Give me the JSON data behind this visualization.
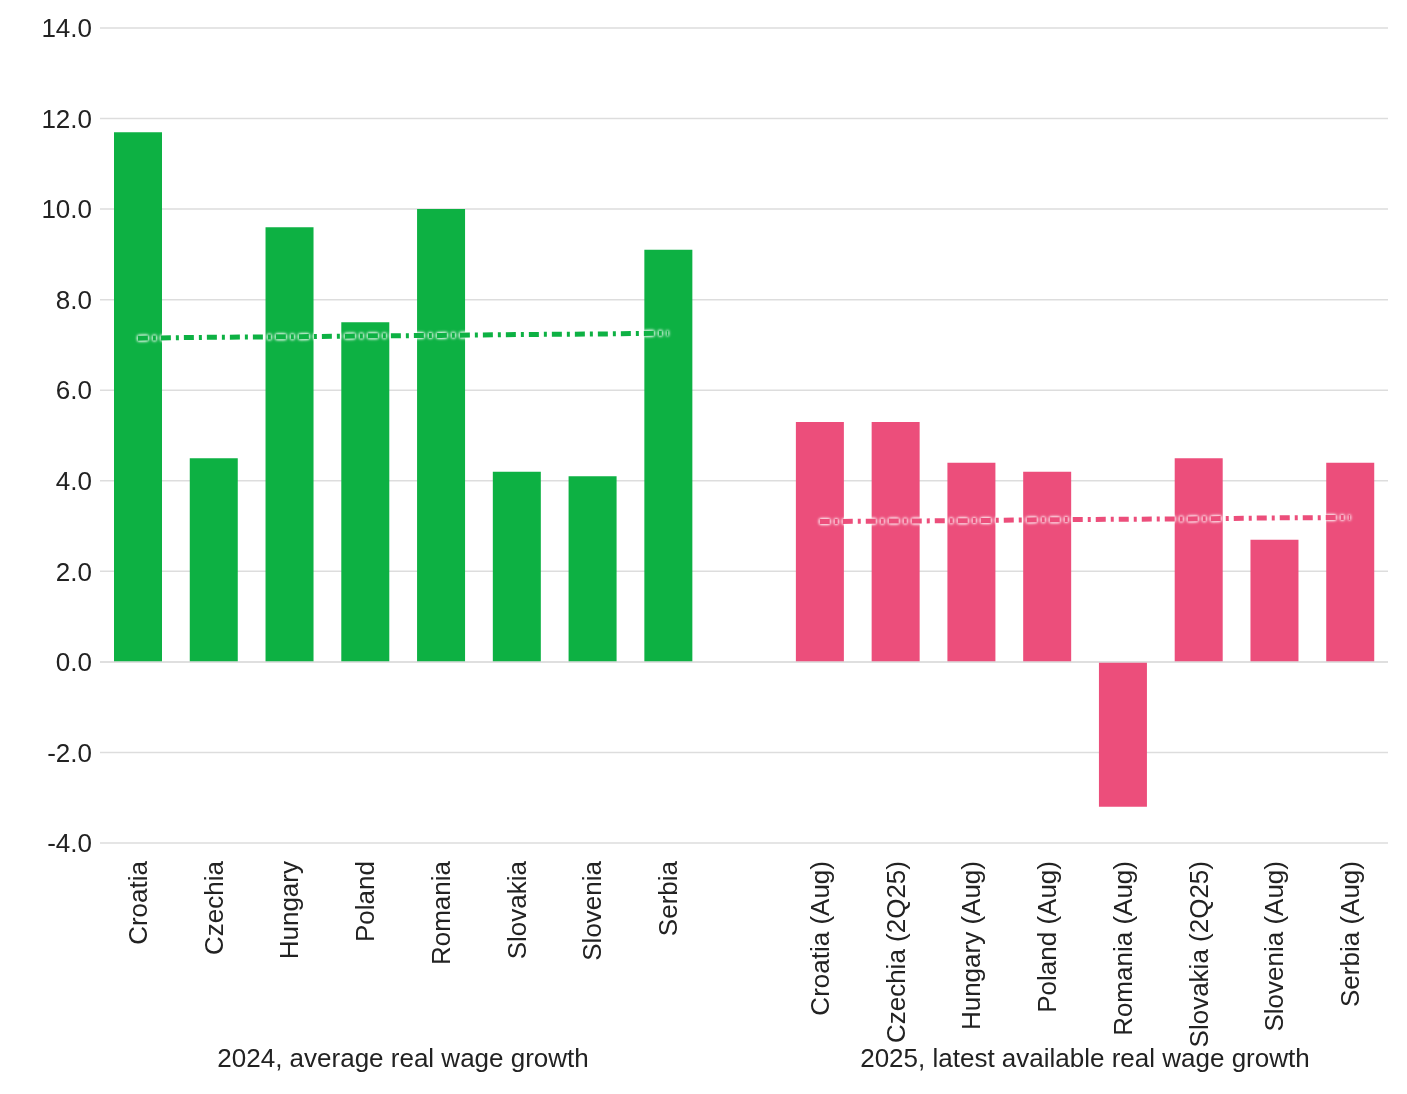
{
  "chart_data": {
    "type": "bar",
    "categories": [
      "Croatia",
      "Czechia",
      "Hungary",
      "Poland",
      "Romania",
      "Slovakia",
      "Slovenia",
      "Serbia",
      null,
      "Croatia (Aug)",
      "Czechia (2Q25)",
      "Hungary (Aug)",
      "Poland (Aug)",
      "Romania (Aug)",
      "Slovakia (2Q25)",
      "Slovenia (Aug)",
      "Serbia (Aug)"
    ],
    "values": [
      11.7,
      4.5,
      9.6,
      7.5,
      10.0,
      4.2,
      4.1,
      9.1,
      null,
      5.3,
      5.3,
      4.4,
      4.2,
      -3.2,
      4.5,
      2.7,
      4.4
    ],
    "colors": [
      "#0db143",
      "#0db143",
      "#0db143",
      "#0db143",
      "#0db143",
      "#0db143",
      "#0db143",
      "#0db143",
      "#0db143",
      "#ec4e7b",
      "#ec4e7b",
      "#ec4e7b",
      "#ec4e7b",
      "#ec4e7b",
      "#ec4e7b",
      "#ec4e7b",
      "#ec4e7b"
    ],
    "series": [
      {
        "type": "line",
        "color": "#0db143",
        "line_style": "dashed",
        "values": [
          7.15,
          7.17,
          7.18,
          7.2,
          7.21,
          7.23,
          7.24,
          7.26,
          null,
          null,
          null,
          null,
          null,
          null,
          null,
          null,
          null
        ]
      },
      {
        "type": "line",
        "color": "#ec4e7b",
        "line_style": "dashed",
        "values": [
          null,
          null,
          null,
          null,
          null,
          null,
          null,
          null,
          null,
          3.1,
          3.11,
          3.12,
          3.14,
          3.15,
          3.16,
          3.18,
          3.19
        ]
      }
    ],
    "ylim": [
      -4,
      14
    ],
    "yticks": [
      {
        "value": -4,
        "label": "-4.0"
      },
      {
        "value": -2,
        "label": "-2.0"
      },
      {
        "value": 0,
        "label": "0.0"
      },
      {
        "value": 2,
        "label": "2.0"
      },
      {
        "value": 4,
        "label": "4.0"
      },
      {
        "value": 6,
        "label": "6.0"
      },
      {
        "value": 8,
        "label": "8.0"
      },
      {
        "value": 10,
        "label": "10.0"
      },
      {
        "value": 12,
        "label": "12.0"
      },
      {
        "value": 14,
        "label": "14.0"
      }
    ],
    "grid": "y",
    "annotations": [
      "2024, average real wage growth",
      "2025, latest available real wage growth"
    ]
  }
}
